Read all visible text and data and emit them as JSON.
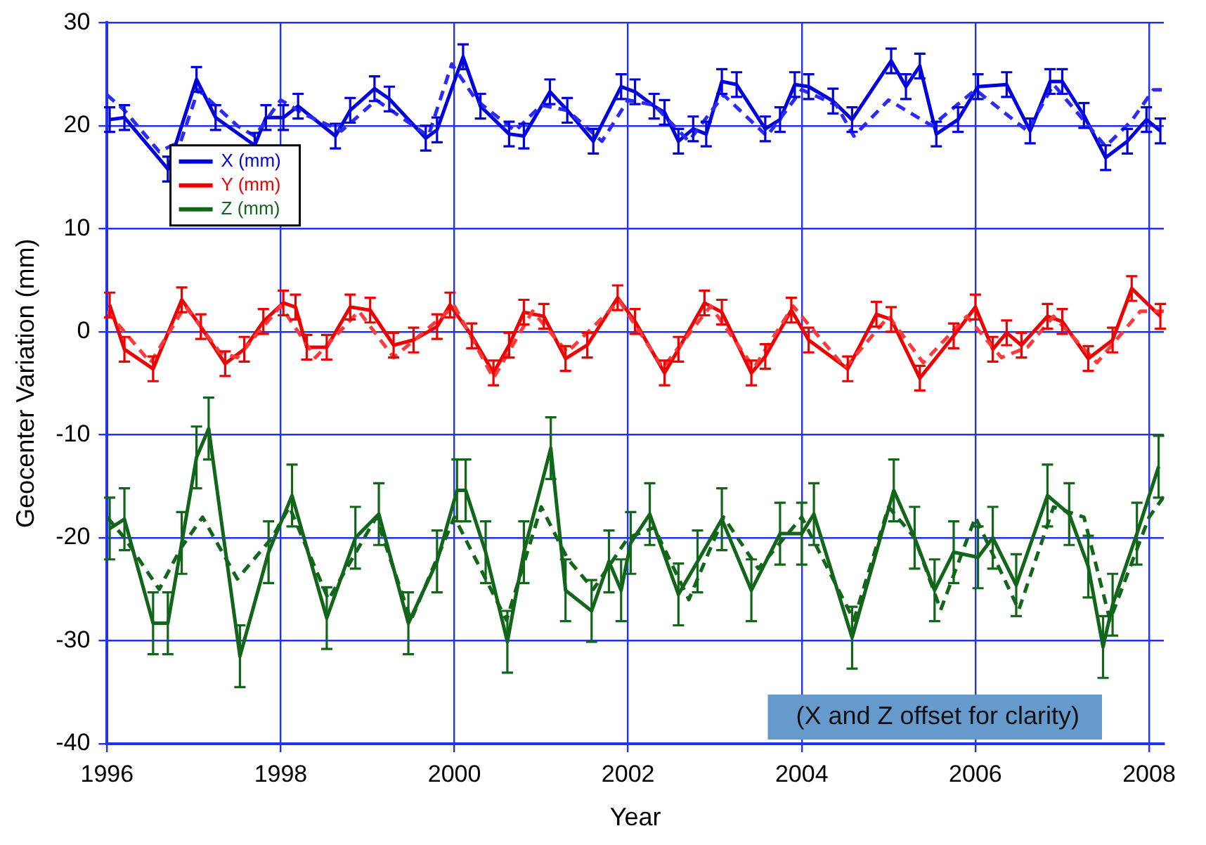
{
  "chart_data": {
    "type": "line",
    "xlabel": "Year",
    "ylabel": "Geocenter Variation (mm)",
    "xlim": [
      1996,
      2008.17
    ],
    "xticks": [
      1996,
      1998,
      2000,
      2002,
      2004,
      2006,
      2008
    ],
    "ylim": [
      -40,
      30
    ],
    "yticks": [
      -40,
      -30,
      -20,
      -10,
      0,
      10,
      20,
      30
    ],
    "grid": true,
    "legend": "top left",
    "marker": "none",
    "annotations": [
      "(X and Z offset for clarity)"
    ],
    "series": [
      {
        "name": "X (mm)",
        "color": "#0000dd",
        "line_style": "solid",
        "errors": [
          1.2,
          1.2,
          1.2,
          1.2,
          1.2,
          1.2,
          1.2,
          1.2,
          1.2,
          1.2,
          1.2,
          1.2,
          1.2,
          1.2,
          1.2,
          1.2,
          1.2,
          1.2,
          1.2,
          1.2,
          1.2,
          1.2,
          1.2,
          1.2,
          1.2,
          1.2,
          1.2,
          1.2,
          1.2,
          1.2,
          1.2,
          1.2,
          1.2,
          1.2,
          1.2,
          1.2,
          1.2,
          1.2,
          1.2,
          1.2,
          1.2,
          1.2,
          1.2,
          1.2,
          1.2,
          1.2,
          1.2,
          1.2,
          1.2,
          1.2,
          1.2,
          1.2
        ],
        "x": [
          1996.03,
          1996.2,
          1996.7,
          1997.03,
          1997.25,
          1997.7,
          1997.83,
          1998.03,
          1998.2,
          1998.63,
          1998.8,
          1999.08,
          1999.25,
          1999.67,
          1999.8,
          2000.1,
          2000.3,
          2000.63,
          2000.8,
          2001.1,
          2001.3,
          2001.6,
          2001.92,
          2002.08,
          2002.3,
          2002.42,
          2002.58,
          2002.75,
          2002.9,
          2003.08,
          2003.25,
          2003.58,
          2003.75,
          2003.92,
          2004.08,
          2004.36,
          2004.58,
          2005.03,
          2005.2,
          2005.36,
          2005.55,
          2005.8,
          2006.03,
          2006.36,
          2006.63,
          2006.86,
          2007.0,
          2007.25,
          2007.5,
          2007.75,
          2007.97,
          2008.13
        ],
        "values": [
          20.6,
          20.8,
          15.8,
          24.5,
          20.8,
          18.1,
          20.8,
          20.8,
          21.9,
          19.0,
          21.5,
          23.6,
          22.6,
          18.8,
          19.6,
          26.7,
          21.9,
          19.2,
          19.0,
          23.3,
          21.5,
          18.5,
          23.8,
          23.3,
          21.9,
          21.3,
          18.5,
          19.7,
          19.2,
          24.3,
          24.0,
          19.7,
          20.6,
          24.0,
          23.8,
          22.4,
          20.6,
          26.3,
          23.8,
          25.8,
          19.2,
          20.6,
          23.8,
          24.0,
          19.5,
          24.3,
          24.3,
          21.0,
          16.9,
          18.5,
          20.6,
          19.5
        ]
      },
      {
        "name": "Y (mm)",
        "color": "#ee0000",
        "line_style": "solid",
        "errors": [
          1.2,
          1.2,
          1.2,
          1.2,
          1.2,
          1.2,
          1.2,
          1.2,
          1.2,
          1.2,
          1.2,
          1.2,
          1.2,
          1.2,
          1.2,
          1.2,
          1.2,
          1.2,
          1.2,
          1.2,
          1.2,
          1.2,
          1.2,
          1.2,
          1.2,
          1.2,
          1.2,
          1.2,
          1.2,
          1.2,
          1.2,
          1.2,
          1.2,
          1.2,
          1.2,
          1.2,
          1.2,
          1.2,
          1.2,
          1.2,
          1.2,
          1.2,
          1.2,
          1.2,
          1.2,
          1.2,
          1.2,
          1.2,
          1.2,
          1.2
        ],
        "x": [
          1996.03,
          1996.2,
          1996.53,
          1996.86,
          1997.08,
          1997.36,
          1997.58,
          1997.8,
          1998.03,
          1998.17,
          1998.3,
          1998.53,
          1998.8,
          1999.03,
          1999.3,
          1999.53,
          1999.8,
          1999.95,
          2000.2,
          2000.45,
          2000.63,
          2000.8,
          2001.03,
          2001.28,
          2001.53,
          2001.88,
          2002.08,
          2002.42,
          2002.58,
          2002.88,
          2003.08,
          2003.42,
          2003.58,
          2003.88,
          2004.08,
          2004.53,
          2004.86,
          2005.03,
          2005.36,
          2005.75,
          2006.0,
          2006.2,
          2006.36,
          2006.53,
          2006.83,
          2007.0,
          2007.3,
          2007.58,
          2007.8,
          2008.13
        ],
        "values": [
          2.6,
          -1.7,
          -3.6,
          3.1,
          0.5,
          -3.1,
          -1.7,
          1.0,
          2.8,
          2.4,
          -1.5,
          -1.5,
          2.4,
          2.1,
          -1.3,
          -0.8,
          0.5,
          2.6,
          -0.4,
          -4.0,
          -1.3,
          1.9,
          1.5,
          -2.6,
          -1.3,
          3.3,
          1.0,
          -4.0,
          -1.7,
          2.8,
          1.9,
          -4.0,
          -2.4,
          2.1,
          -0.8,
          -3.6,
          1.7,
          1.2,
          -4.5,
          -0.4,
          2.4,
          -1.7,
          -0.1,
          -1.3,
          1.5,
          1.0,
          -2.6,
          -0.8,
          4.2,
          1.5
        ]
      },
      {
        "name": "Z (mm)",
        "color": "#11661a",
        "line_style": "solid",
        "errors": [
          3,
          3,
          3,
          3,
          3,
          3,
          3,
          3,
          3,
          3,
          3,
          3,
          3,
          3,
          3,
          3,
          3,
          3,
          3,
          3,
          3,
          3,
          3,
          3,
          3,
          3,
          3,
          3,
          3,
          3,
          3,
          3,
          3,
          3,
          3,
          3,
          3,
          3,
          3,
          3,
          3,
          3,
          3,
          3,
          3,
          3,
          3,
          3,
          3
        ],
        "x": [
          1996.03,
          1996.2,
          1996.53,
          1996.7,
          1996.86,
          1997.03,
          1997.17,
          1997.53,
          1997.86,
          1998.13,
          1998.53,
          1998.86,
          1999.13,
          1999.47,
          1999.8,
          2000.03,
          2000.13,
          2000.36,
          2000.61,
          2000.8,
          2001.11,
          2001.28,
          2001.58,
          2001.78,
          2001.92,
          2002.03,
          2002.25,
          2002.58,
          2002.8,
          2003.08,
          2003.42,
          2003.75,
          2004.0,
          2004.14,
          2004.58,
          2005.06,
          2005.3,
          2005.53,
          2005.75,
          2006.03,
          2006.2,
          2006.47,
          2006.83,
          2007.08,
          2007.3,
          2007.47,
          2007.58,
          2007.86,
          2008.11
        ],
        "values": [
          -19.1,
          -18.2,
          -28.3,
          -28.3,
          -20.5,
          -12.2,
          -9.4,
          -31.5,
          -21.4,
          -15.9,
          -27.8,
          -20.0,
          -17.7,
          -28.3,
          -22.3,
          -15.4,
          -15.4,
          -21.4,
          -30.1,
          -21.4,
          -11.3,
          -25.1,
          -27.1,
          -22.3,
          -25.1,
          -20.5,
          -17.7,
          -25.5,
          -22.3,
          -18.2,
          -25.1,
          -19.6,
          -19.6,
          -17.7,
          -29.7,
          -15.4,
          -20.0,
          -25.1,
          -21.4,
          -21.9,
          -20.0,
          -24.6,
          -15.9,
          -17.7,
          -22.8,
          -30.6,
          -26.5,
          -19.6,
          -13.1
        ]
      },
      {
        "color": "#2a2aff",
        "line_style": "dashed",
        "x": [
          1996.0,
          1996.2,
          1996.6,
          1996.85,
          1997.05,
          1997.5,
          1997.7,
          1998.0,
          1998.3,
          1998.7,
          1999.1,
          1999.7,
          1999.97,
          2000.25,
          2000.7,
          2001.0,
          2001.3,
          2001.7,
          2002.0,
          2002.3,
          2002.7,
          2003.1,
          2003.6,
          2004.0,
          2004.4,
          2004.6,
          2005.0,
          2005.5,
          2006.0,
          2006.6,
          2006.9,
          2007.5,
          2007.8,
          2008.05,
          2008.17
        ],
        "values": [
          23,
          21.5,
          17.5,
          18.5,
          23.5,
          20,
          19,
          22.5,
          21,
          19.5,
          22.5,
          19,
          26,
          22.5,
          19.5,
          22,
          21.5,
          18.5,
          22.5,
          22,
          18.5,
          23,
          19,
          23.5,
          22,
          19,
          22.5,
          20,
          23.5,
          19.5,
          24,
          18,
          20.5,
          23.5,
          23.5
        ]
      },
      {
        "color": "#ff3a3a",
        "line_style": "dashed",
        "x": [
          1996.0,
          1996.5,
          1996.9,
          1997.3,
          1997.5,
          1998.0,
          1998.4,
          1998.9,
          1999.3,
          2000.0,
          2000.45,
          2000.9,
          2001.3,
          2001.9,
          2002.4,
          2002.95,
          2003.45,
          2003.9,
          2004.5,
          2005.0,
          2005.4,
          2005.9,
          2006.3,
          2006.6,
          2006.9,
          2007.4,
          2007.9,
          2008.17
        ],
        "values": [
          2,
          -3,
          2.5,
          -2,
          -2.5,
          2.5,
          -2.5,
          2,
          -2.5,
          2.5,
          -4.5,
          2,
          -2,
          3,
          -3.5,
          2.5,
          -3.5,
          2.5,
          -3.5,
          1.5,
          -3,
          1.5,
          -2.5,
          -1.5,
          1.5,
          -3,
          2,
          2
        ]
      },
      {
        "color": "#11661a",
        "line_style": "dashed",
        "x": [
          1996.0,
          1996.2,
          1996.6,
          1996.85,
          1997.1,
          1997.5,
          1997.9,
          1998.1,
          1998.55,
          1999.1,
          1999.5,
          2000.0,
          2000.6,
          2001.0,
          2001.3,
          2001.6,
          2002.0,
          2002.3,
          2002.7,
          2003.1,
          2003.5,
          2004.0,
          2004.6,
          2005.0,
          2005.3,
          2005.6,
          2006.0,
          2006.5,
          2006.9,
          2007.25,
          2007.55,
          2008.0,
          2008.17
        ],
        "values": [
          -18,
          -20,
          -25,
          -21,
          -18,
          -24,
          -20,
          -17,
          -26,
          -18,
          -28,
          -18,
          -28,
          -17,
          -22,
          -25,
          -20,
          -19,
          -26,
          -18,
          -23,
          -18,
          -28,
          -17,
          -20,
          -27,
          -18,
          -27,
          -17,
          -18,
          -28,
          -18,
          -16
        ]
      }
    ]
  }
}
